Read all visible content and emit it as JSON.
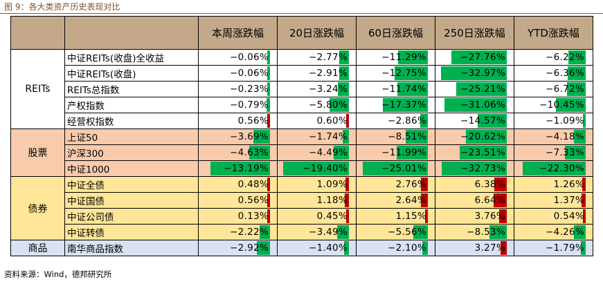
{
  "title": "图 9：各大类资产历史表现对比",
  "source": "资料来源：Wind，德邦研究所",
  "columns": [
    "本周涨跌幅",
    "20日涨跌幅",
    "60日涨跌幅",
    "250日涨跌幅",
    "YTD涨跌幅"
  ],
  "colors": {
    "header": "#c3a98a",
    "negative_bar": "#00b050",
    "positive_bar": "#c00000",
    "reits": "#ffffff",
    "stock": "#f8cbad",
    "bond": "#ffe699",
    "commodity": "#d9e1f2"
  },
  "groups": [
    {
      "label": "REITs",
      "style": "g-reits",
      "rows": [
        {
          "name": "中证REITs(收盘)全收益",
          "values": [
            -0.06,
            -2.77,
            -11.29,
            -27.76,
            -6.22
          ]
        },
        {
          "name": "中证REITs(收盘)",
          "values": [
            -0.06,
            -2.91,
            -12.75,
            -32.97,
            -6.36
          ]
        },
        {
          "name": "REITs总指数",
          "values": [
            -0.23,
            -3.24,
            -11.74,
            -25.21,
            -6.72
          ]
        },
        {
          "name": "产权指数",
          "values": [
            -0.79,
            -5.8,
            -17.37,
            -31.06,
            -10.45
          ]
        },
        {
          "name": "经营权指数",
          "values": [
            0.56,
            0.6,
            -2.86,
            -14.57,
            -1.09
          ]
        }
      ]
    },
    {
      "label": "股票",
      "style": "g-stock",
      "rows": [
        {
          "name": "上证50",
          "values": [
            -3.69,
            -1.74,
            -8.51,
            -20.62,
            -4.18
          ]
        },
        {
          "name": "沪深300",
          "values": [
            -4.63,
            -4.49,
            -11.99,
            -23.51,
            -7.33
          ]
        },
        {
          "name": "中证1000",
          "values": [
            -13.19,
            -19.4,
            -25.01,
            -32.73,
            -22.3
          ]
        }
      ]
    },
    {
      "label": "债券",
      "style": "g-bond",
      "rows": [
        {
          "name": "中证全债",
          "values": [
            0.48,
            1.09,
            2.76,
            6.38,
            1.26
          ]
        },
        {
          "name": "中证国债",
          "values": [
            0.56,
            1.18,
            2.64,
            6.64,
            1.37
          ]
        },
        {
          "name": "中证公司债",
          "values": [
            0.13,
            0.45,
            1.15,
            3.76,
            0.54
          ]
        },
        {
          "name": "中证转债",
          "values": [
            -2.22,
            -3.49,
            -5.56,
            -8.53,
            -4.26
          ]
        }
      ]
    },
    {
      "label": "商品",
      "style": "g-comm",
      "rows": [
        {
          "name": "南华商品指数",
          "values": [
            -2.92,
            -1.4,
            -2.1,
            3.27,
            -1.79
          ]
        }
      ]
    }
  ]
}
